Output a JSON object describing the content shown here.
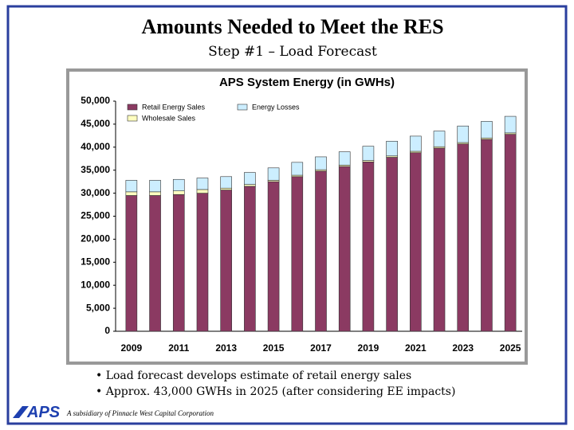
{
  "slide": {
    "title": "Amounts Needed to Meet the RES",
    "subtitle": "Step #1 – Load Forecast",
    "bullets": [
      "• Load forecast develops estimate of retail energy sales",
      "• Approx. 43,000 GWHs in 2025 (after considering EE impacts)"
    ],
    "logo": "APS",
    "tagline": "A subsidiary of Pinnacle West Capital Corporation"
  },
  "chart_data": {
    "type": "stacked_bar",
    "title": "APS System Energy (in GWHs)",
    "categories": [
      "2009",
      null,
      "2011",
      null,
      "2013",
      null,
      "2015",
      null,
      "2017",
      null,
      "2019",
      null,
      "2021",
      null,
      "2023",
      null,
      "2025"
    ],
    "series": [
      {
        "name": "Retail Energy Sales",
        "color": "#8b3a62",
        "values": [
          29500,
          29500,
          29700,
          30000,
          30700,
          31500,
          32500,
          33600,
          34800,
          35800,
          36800,
          37800,
          38800,
          39800,
          40700,
          41700,
          42800
        ]
      },
      {
        "name": "Wholesale Sales",
        "color": "#ffffc0",
        "values": [
          800,
          800,
          800,
          800,
          400,
          400,
          300,
          300,
          300,
          300,
          300,
          300,
          300,
          300,
          300,
          300,
          300
        ]
      },
      {
        "name": "Energy Losses",
        "color": "#cceeff",
        "values": [
          2500,
          2500,
          2500,
          2500,
          2500,
          2600,
          2700,
          2800,
          2800,
          2900,
          3100,
          3200,
          3300,
          3400,
          3600,
          3600,
          3600
        ]
      }
    ],
    "ylim": [
      0,
      50000
    ],
    "yticks": [
      0,
      {
        "value": 5000,
        "label": "5,000"
      },
      {
        "value": 10000,
        "label": "10,000"
      },
      {
        "value": 15000,
        "label": "15,000"
      },
      {
        "value": 20000,
        "label": "20,000"
      },
      {
        "value": 25000,
        "label": "25,000"
      },
      {
        "value": 30000,
        "label": "30,000"
      },
      {
        "value": 35000,
        "label": "35,000"
      },
      {
        "value": 40000,
        "label": "40,000"
      },
      {
        "value": 45000,
        "label": "45,000"
      },
      {
        "value": 50000,
        "label": "50,000"
      }
    ]
  }
}
